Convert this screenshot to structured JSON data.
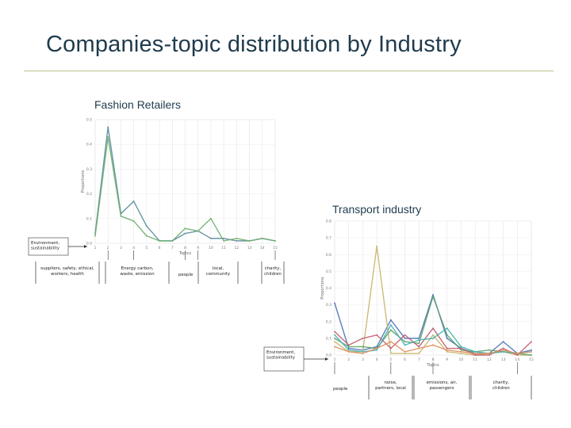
{
  "slide": {
    "title": "Companies-topic distribution by Industry"
  },
  "chart_data": [
    {
      "type": "line",
      "title": "Fashion Retailers",
      "xlabel": "Topics",
      "ylabel": "Proportions",
      "x": [
        1,
        2,
        3,
        4,
        5,
        6,
        7,
        8,
        9,
        10,
        11,
        12,
        13,
        14,
        15
      ],
      "y_ticks": [
        "0.0",
        "0.1",
        "0.2",
        "0.3",
        "0.4",
        "0.5"
      ],
      "ylim": [
        0,
        0.5
      ],
      "grid": true,
      "series": [
        {
          "color": "#5a8a9e",
          "values": [
            0.04,
            0.47,
            0.12,
            0.17,
            0.07,
            0.01,
            0.01,
            0.04,
            0.05,
            0.02,
            0.02,
            0.01,
            0.01,
            0.02,
            0.01
          ]
        },
        {
          "color": "#6cae6c",
          "values": [
            0.03,
            0.43,
            0.11,
            0.09,
            0.03,
            0.01,
            0.01,
            0.06,
            0.05,
            0.1,
            0.01,
            0.02,
            0.01,
            0.02,
            0.01
          ]
        }
      ],
      "annotations": [
        {
          "text": [
            "Environment,",
            "sustainability"
          ],
          "topic": 1
        },
        {
          "text": [
            "suppliers, safety, ethical,",
            "workers, health"
          ],
          "topic": 2
        },
        {
          "text": [
            "Energy carbon,",
            "waste, emission"
          ],
          "topic": 4
        },
        {
          "text": [
            "people"
          ],
          "topic": 8
        },
        {
          "text": [
            "local,",
            "community"
          ],
          "topic": 9
        },
        {
          "text": [
            "charity,",
            "children"
          ],
          "topic": 15
        }
      ]
    },
    {
      "type": "line",
      "title": "Transport industry",
      "xlabel": "Topics",
      "ylabel": "Proportions",
      "x": [
        1,
        2,
        3,
        4,
        5,
        6,
        7,
        8,
        9,
        10,
        11,
        12,
        13,
        14,
        15
      ],
      "y_ticks": [
        "0.0",
        "0.1",
        "0.2",
        "0.3",
        "0.4",
        "0.5",
        "0.6",
        "0.7",
        "0.8"
      ],
      "ylim": [
        0,
        0.8
      ],
      "grid": true,
      "series": [
        {
          "color": "#4a6fb5",
          "values": [
            0.31,
            0.04,
            0.03,
            0.05,
            0.21,
            0.1,
            0.1,
            0.36,
            0.1,
            0.04,
            0.01,
            0.01,
            0.08,
            0.01,
            0.03
          ]
        },
        {
          "color": "#c9b46a",
          "values": [
            0.08,
            0.02,
            0.02,
            0.65,
            0.01,
            0.01,
            0.01,
            0.12,
            0.02,
            0.01,
            0.0,
            0.01,
            0.02,
            0.0,
            0.0
          ]
        },
        {
          "color": "#5aa06a",
          "values": [
            0.1,
            0.05,
            0.05,
            0.04,
            0.15,
            0.08,
            0.07,
            0.35,
            0.12,
            0.03,
            0.02,
            0.03,
            0.02,
            0.01,
            0.0
          ]
        },
        {
          "color": "#c25a6e",
          "values": [
            0.14,
            0.06,
            0.1,
            0.12,
            0.04,
            0.12,
            0.05,
            0.16,
            0.04,
            0.04,
            0.0,
            0.0,
            0.04,
            0.0,
            0.08
          ]
        },
        {
          "color": "#45b0b0",
          "values": [
            0.12,
            0.03,
            0.02,
            0.03,
            0.18,
            0.06,
            0.09,
            0.1,
            0.16,
            0.05,
            0.02,
            0.01,
            0.02,
            0.01,
            0.02
          ]
        },
        {
          "color": "#e08f5a",
          "values": [
            0.05,
            0.02,
            0.01,
            0.04,
            0.08,
            0.02,
            0.04,
            0.06,
            0.03,
            0.02,
            0.01,
            0.01,
            0.03,
            0.01,
            0.02
          ]
        }
      ],
      "annotations": [
        {
          "text": [
            "Environment,",
            "sustainability"
          ],
          "topic": 1
        },
        {
          "text": [
            "people"
          ],
          "topic": 1
        },
        {
          "text": [
            "noise,",
            "partners, local"
          ],
          "topic": 5
        },
        {
          "text": [
            "emissions, air,",
            "passengers"
          ],
          "topic": 8
        },
        {
          "text": [
            "charity,",
            "children"
          ],
          "topic": 14
        }
      ]
    }
  ]
}
